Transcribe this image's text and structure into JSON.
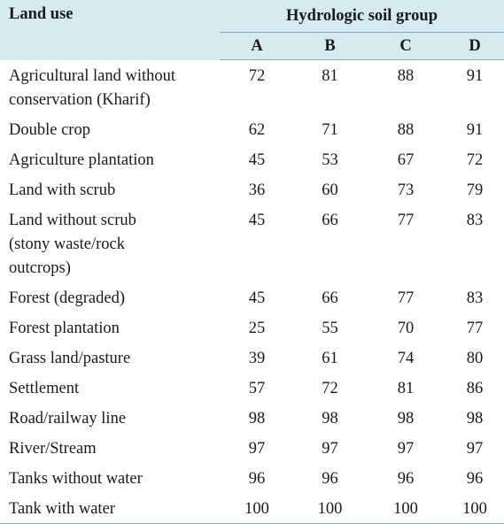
{
  "table": {
    "header": {
      "land_use": "Land use",
      "group": "Hydrologic soil group",
      "columns": [
        "A",
        "B",
        "C",
        "D"
      ]
    },
    "rows": [
      {
        "land": [
          "Agricultural land without",
          "conservation (Kharif)"
        ],
        "values": [
          "72",
          "81",
          "88",
          "91"
        ]
      },
      {
        "land": [
          "Double crop"
        ],
        "values": [
          "62",
          "71",
          "88",
          "91"
        ]
      },
      {
        "land": [
          "Agriculture plantation"
        ],
        "values": [
          "45",
          "53",
          "67",
          "72"
        ]
      },
      {
        "land": [
          "Land with scrub"
        ],
        "values": [
          "36",
          "60",
          "73",
          "79"
        ]
      },
      {
        "land": [
          "Land without scrub",
          "(stony waste/rock",
          "outcrops)"
        ],
        "values": [
          "45",
          "66",
          "77",
          "83"
        ]
      },
      {
        "land": [
          "Forest (degraded)"
        ],
        "values": [
          "45",
          "66",
          "77",
          "83"
        ]
      },
      {
        "land": [
          "Forest plantation"
        ],
        "values": [
          "25",
          "55",
          "70",
          "77"
        ]
      },
      {
        "land": [
          "Grass land/pasture"
        ],
        "values": [
          "39",
          "61",
          "74",
          "80"
        ]
      },
      {
        "land": [
          "Settlement"
        ],
        "values": [
          "57",
          "72",
          "81",
          "86"
        ]
      },
      {
        "land": [
          "Road/railway line"
        ],
        "values": [
          "98",
          "98",
          "98",
          "98"
        ]
      },
      {
        "land": [
          "River/Stream"
        ],
        "values": [
          "97",
          "97",
          "97",
          "97"
        ]
      },
      {
        "land": [
          "Tanks without water"
        ],
        "values": [
          "96",
          "96",
          "96",
          "96"
        ]
      },
      {
        "land": [
          "Tank with water"
        ],
        "values": [
          "100",
          "100",
          "100",
          "100"
        ]
      }
    ]
  },
  "colors": {
    "header_bg": "#d5eaf1",
    "rule": "#7faec0",
    "text": "#1a1a1a"
  }
}
